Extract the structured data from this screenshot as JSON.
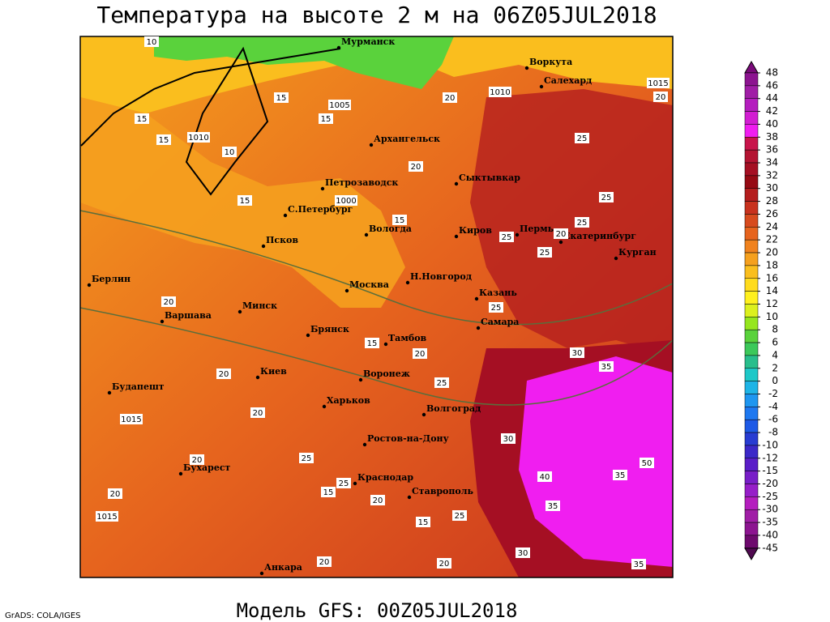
{
  "header": {
    "title": "Температура на высоте 2 м на 06Z05JUL2018"
  },
  "footer": {
    "model": "Модель GFS: 00Z05JUL2018",
    "credit": "GrADS: COLA/IGES"
  },
  "cities": [
    "Мурманск",
    "Воркута",
    "Салехард",
    "Архангельск",
    "Петрозаводск",
    "Сыктывкар",
    "С.Петербург",
    "Вологда",
    "Киров",
    "Пермь",
    "Екатеринбург",
    "Курган",
    "Псков",
    "Берлин",
    "Н.Новгород",
    "Москва",
    "Казань",
    "Варшава",
    "Минск",
    "Самара",
    "Брянск",
    "Тамбов",
    "Киев",
    "Воронеж",
    "Будапешт",
    "Харьков",
    "Волгоград",
    "Ростов-на-Дону",
    "Бухарест",
    "Краснодар",
    "Ставрополь",
    "Анкара"
  ],
  "isotherm_labels": [
    10,
    15,
    15,
    15,
    10,
    15,
    20,
    15,
    15,
    20,
    25,
    25,
    25,
    25,
    25,
    20,
    20,
    15,
    20,
    25,
    30,
    35,
    20,
    20,
    25,
    30,
    40,
    35,
    50,
    35,
    20,
    25,
    25,
    15,
    20,
    25,
    20,
    15,
    20,
    30,
    35,
    20,
    20
  ],
  "isobar_labels": [
    1005,
    1010,
    1010,
    1015,
    1000,
    1015,
    1015
  ],
  "colorbar": {
    "ticks": [
      48,
      46,
      44,
      42,
      40,
      38,
      36,
      34,
      32,
      30,
      28,
      26,
      24,
      22,
      20,
      18,
      16,
      14,
      12,
      10,
      8,
      6,
      4,
      2,
      0,
      -2,
      -4,
      -6,
      -8,
      -10,
      -12,
      -15,
      -20,
      -25,
      -30,
      -35,
      -40,
      -45
    ],
    "colors": [
      "#7a0a7a",
      "#8c1490",
      "#a01ea6",
      "#b41ebe",
      "#d21ed2",
      "#f01ef0",
      "#c8144b",
      "#b41432",
      "#a50f23",
      "#960a14",
      "#b41e1e",
      "#c8321e",
      "#d74b1e",
      "#e6641e",
      "#f0821e",
      "#f5a01e",
      "#fabe1e",
      "#ffdc1e",
      "#fff01e",
      "#dcf01e",
      "#96e61e",
      "#5ad23c",
      "#3cc85a",
      "#28be8c",
      "#1ec8c8",
      "#1eb4e6",
      "#1e96f0",
      "#1e78f0",
      "#1e5ae6",
      "#283cd2",
      "#3c28c8",
      "#5a1ec8",
      "#781ec8",
      "#961ec8",
      "#b41ebe",
      "#a01ea6",
      "#8c1490",
      "#6e0a6e",
      "#500a50"
    ]
  }
}
